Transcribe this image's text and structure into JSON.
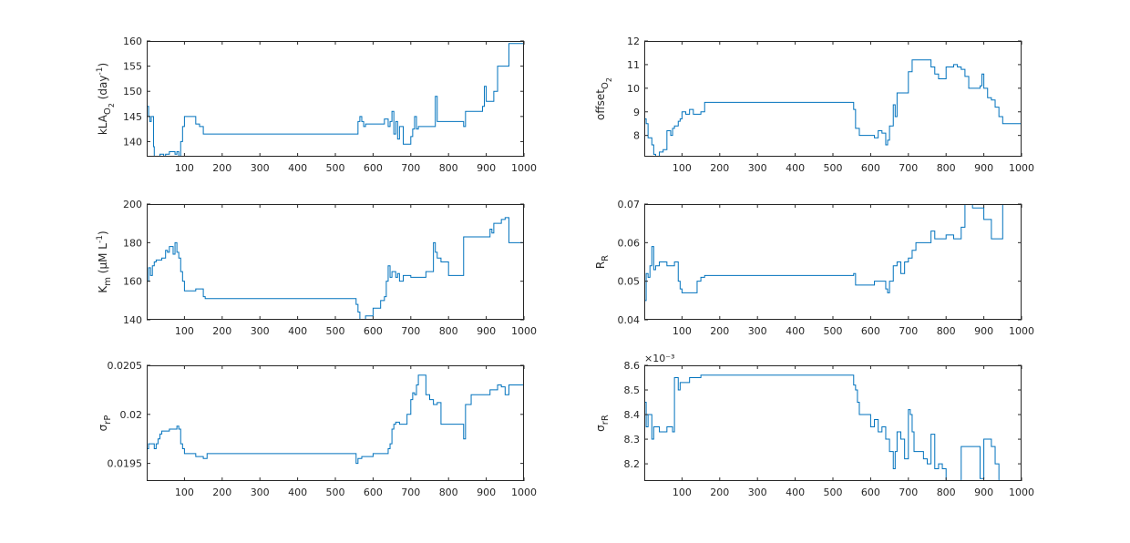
{
  "colors": {
    "line": "#0072BD",
    "axis": "#262626",
    "background": "#ffffff"
  },
  "chart_data": [
    {
      "type": "line",
      "ylabel": "kLA O2 (day-1)",
      "ylabel_parts": [
        {
          "t": "kLA",
          "s": ""
        },
        {
          "t": "O",
          "s": "sub"
        },
        {
          "t": "2",
          "s": "subsub"
        },
        {
          "t": " (day",
          "s": ""
        },
        {
          "t": "-1",
          "s": "sup"
        },
        {
          "t": ")",
          "s": ""
        }
      ],
      "xlim": [
        0,
        1000
      ],
      "ylim": [
        137,
        160
      ],
      "xticks": [
        100,
        200,
        300,
        400,
        500,
        600,
        700,
        800,
        900,
        1000
      ],
      "yticks": [
        140,
        145,
        150,
        155,
        160
      ],
      "x": [
        0,
        5,
        8,
        12,
        18,
        20,
        22,
        25,
        30,
        35,
        40,
        45,
        50,
        55,
        60,
        70,
        75,
        80,
        85,
        90,
        95,
        100,
        110,
        120,
        130,
        140,
        150,
        155,
        555,
        560,
        565,
        570,
        575,
        580,
        600,
        630,
        640,
        645,
        650,
        655,
        660,
        665,
        670,
        680,
        690,
        700,
        705,
        710,
        715,
        720,
        730,
        760,
        765,
        770,
        780,
        800,
        820,
        840,
        845,
        850,
        880,
        890,
        895,
        900,
        910,
        920,
        930,
        950,
        960,
        1000
      ],
      "y": [
        147,
        145,
        144,
        145,
        139,
        137,
        136,
        134,
        136,
        137.5,
        137.5,
        137,
        137.5,
        137.5,
        138,
        138,
        137.5,
        138,
        137,
        140,
        143,
        145,
        145,
        145,
        143.5,
        143,
        141.5,
        141.5,
        141.5,
        144,
        145,
        144,
        143,
        143.5,
        143.5,
        144.5,
        143,
        144,
        146,
        141.5,
        144,
        140.5,
        143,
        139.5,
        139.5,
        141,
        142.5,
        145,
        142.5,
        143,
        143,
        143,
        149,
        144,
        144,
        144,
        144,
        143,
        146,
        146,
        146,
        147,
        151,
        148,
        148,
        150,
        155,
        155,
        159.5,
        159.5
      ]
    },
    {
      "type": "line",
      "ylabel": "offset O2",
      "ylabel_parts": [
        {
          "t": "offset",
          "s": ""
        },
        {
          "t": "O",
          "s": "sub"
        },
        {
          "t": "2",
          "s": "subsub"
        }
      ],
      "xlim": [
        0,
        1000
      ],
      "ylim": [
        7.1,
        12
      ],
      "xticks": [
        100,
        200,
        300,
        400,
        500,
        600,
        700,
        800,
        900,
        1000
      ],
      "yticks": [
        8,
        9,
        10,
        11,
        12
      ],
      "x": [
        0,
        5,
        10,
        20,
        25,
        30,
        40,
        50,
        60,
        70,
        75,
        80,
        90,
        95,
        100,
        110,
        120,
        130,
        150,
        160,
        550,
        555,
        560,
        570,
        600,
        610,
        620,
        630,
        640,
        645,
        650,
        660,
        665,
        670,
        680,
        700,
        710,
        720,
        740,
        760,
        770,
        780,
        800,
        820,
        830,
        840,
        850,
        860,
        880,
        890,
        895,
        900,
        910,
        920,
        930,
        940,
        950,
        1000
      ],
      "y": [
        8.7,
        8.5,
        7.9,
        7.6,
        7.2,
        7.0,
        7.3,
        7.4,
        8.2,
        8.0,
        8.3,
        8.4,
        8.6,
        8.7,
        9.0,
        8.9,
        9.1,
        8.9,
        9.0,
        9.4,
        9.4,
        9.1,
        8.3,
        8.0,
        8.0,
        7.9,
        8.2,
        8.1,
        7.6,
        7.8,
        8.4,
        9.3,
        8.8,
        9.8,
        9.8,
        10.7,
        11.2,
        11.2,
        11.2,
        10.9,
        10.6,
        10.4,
        10.9,
        11.0,
        10.9,
        10.8,
        10.5,
        10.0,
        10.0,
        10.1,
        10.6,
        10.0,
        9.6,
        9.5,
        9.2,
        8.8,
        8.5,
        8.5
      ]
    },
    {
      "type": "line",
      "ylabel": "Km (μM L-1)",
      "ylabel_parts": [
        {
          "t": "K",
          "s": ""
        },
        {
          "t": "m",
          "s": "sub"
        },
        {
          "t": " (μM L",
          "s": ""
        },
        {
          "t": "-1",
          "s": "sup"
        },
        {
          "t": ")",
          "s": ""
        }
      ],
      "xlim": [
        0,
        1000
      ],
      "ylim": [
        140,
        200
      ],
      "xticks": [
        100,
        200,
        300,
        400,
        500,
        600,
        700,
        800,
        900,
        1000
      ],
      "yticks": [
        140,
        160,
        180,
        200
      ],
      "x": [
        0,
        5,
        10,
        15,
        20,
        25,
        30,
        40,
        50,
        55,
        60,
        70,
        75,
        80,
        85,
        90,
        95,
        100,
        110,
        130,
        150,
        155,
        550,
        555,
        560,
        565,
        570,
        580,
        600,
        620,
        630,
        635,
        640,
        645,
        650,
        660,
        665,
        670,
        680,
        700,
        720,
        740,
        760,
        765,
        770,
        780,
        800,
        820,
        840,
        850,
        880,
        900,
        910,
        915,
        920,
        930,
        940,
        950,
        960,
        1000
      ],
      "y": [
        160,
        167,
        163,
        168,
        170,
        171,
        171,
        172,
        176,
        175,
        178,
        174,
        180,
        175,
        172,
        165,
        160,
        155,
        155,
        156,
        152,
        151,
        151,
        148,
        144,
        140,
        138,
        142,
        146,
        150,
        152,
        160,
        168,
        162,
        165,
        162,
        164,
        160,
        163,
        162,
        162,
        165,
        180,
        175,
        172,
        170,
        163,
        163,
        183,
        183,
        183,
        183,
        187,
        185,
        190,
        190,
        192,
        193,
        180,
        180
      ]
    },
    {
      "type": "line",
      "ylabel": "RR",
      "ylabel_parts": [
        {
          "t": "R",
          "s": ""
        },
        {
          "t": "R",
          "s": "sub"
        }
      ],
      "xlim": [
        0,
        1000
      ],
      "ylim": [
        0.04,
        0.07
      ],
      "xticks": [
        100,
        200,
        300,
        400,
        500,
        600,
        700,
        800,
        900,
        1000
      ],
      "yticks": [
        0.04,
        0.05,
        0.06,
        0.07
      ],
      "x": [
        0,
        5,
        10,
        15,
        20,
        25,
        30,
        40,
        60,
        80,
        90,
        95,
        100,
        130,
        140,
        150,
        160,
        550,
        555,
        560,
        570,
        600,
        610,
        620,
        640,
        645,
        650,
        660,
        670,
        680,
        690,
        700,
        710,
        720,
        740,
        760,
        770,
        780,
        800,
        820,
        840,
        850,
        870,
        880,
        900,
        920,
        940,
        950,
        1000
      ],
      "y": [
        0.045,
        0.052,
        0.051,
        0.054,
        0.059,
        0.053,
        0.054,
        0.055,
        0.054,
        0.055,
        0.05,
        0.048,
        0.047,
        0.047,
        0.05,
        0.051,
        0.0515,
        0.0515,
        0.052,
        0.049,
        0.049,
        0.049,
        0.05,
        0.05,
        0.048,
        0.047,
        0.05,
        0.054,
        0.055,
        0.052,
        0.055,
        0.056,
        0.058,
        0.06,
        0.06,
        0.063,
        0.061,
        0.061,
        0.062,
        0.061,
        0.064,
        0.07,
        0.069,
        0.069,
        0.066,
        0.061,
        0.061,
        0.07,
        0.07
      ]
    },
    {
      "type": "line",
      "ylabel": "σrP",
      "ylabel_parts": [
        {
          "t": "σ",
          "s": ""
        },
        {
          "t": "rP",
          "s": "sub"
        }
      ],
      "xlim": [
        0,
        1000
      ],
      "ylim": [
        0.01932,
        0.0205
      ],
      "xticks": [
        100,
        200,
        300,
        400,
        500,
        600,
        700,
        800,
        900,
        1000
      ],
      "yticks": [
        0.0195,
        0.02,
        0.0205
      ],
      "ytick_labels": [
        "0.0195",
        "0.02",
        "0.0205"
      ],
      "x": [
        0,
        5,
        15,
        20,
        25,
        30,
        35,
        40,
        60,
        70,
        80,
        85,
        90,
        95,
        100,
        130,
        150,
        160,
        550,
        555,
        560,
        570,
        600,
        630,
        640,
        645,
        650,
        655,
        660,
        670,
        680,
        690,
        700,
        705,
        710,
        715,
        720,
        740,
        750,
        760,
        770,
        780,
        800,
        820,
        840,
        845,
        850,
        860,
        880,
        900,
        910,
        920,
        930,
        940,
        950,
        960,
        1000
      ],
      "y": [
        0.01965,
        0.0197,
        0.0197,
        0.01965,
        0.0197,
        0.01975,
        0.0198,
        0.01983,
        0.01985,
        0.01985,
        0.01988,
        0.01985,
        0.0197,
        0.01965,
        0.0196,
        0.01957,
        0.01955,
        0.0196,
        0.0196,
        0.0195,
        0.01955,
        0.01957,
        0.0196,
        0.0196,
        0.01965,
        0.0197,
        0.01985,
        0.0199,
        0.01992,
        0.0199,
        0.0199,
        0.02,
        0.02015,
        0.02022,
        0.0202,
        0.0203,
        0.0204,
        0.0202,
        0.02015,
        0.0201,
        0.02012,
        0.0199,
        0.0199,
        0.0199,
        0.01975,
        0.0201,
        0.0201,
        0.0202,
        0.0202,
        0.0202,
        0.02025,
        0.02025,
        0.0203,
        0.02028,
        0.0202,
        0.0203,
        0.0203
      ]
    },
    {
      "type": "line",
      "ylabel": "σrR",
      "ylabel_parts": [
        {
          "t": "σ",
          "s": ""
        },
        {
          "t": "rR",
          "s": "sub"
        }
      ],
      "exponent": "×10⁻³",
      "xlim": [
        0,
        1000
      ],
      "ylim": [
        8.13,
        8.6
      ],
      "xticks": [
        100,
        200,
        300,
        400,
        500,
        600,
        700,
        800,
        900,
        1000
      ],
      "yticks": [
        8.2,
        8.3,
        8.4,
        8.5,
        8.6
      ],
      "x": [
        0,
        5,
        10,
        20,
        25,
        30,
        40,
        55,
        60,
        75,
        80,
        90,
        95,
        100,
        120,
        150,
        160,
        550,
        555,
        560,
        565,
        570,
        600,
        610,
        620,
        630,
        640,
        650,
        660,
        665,
        670,
        680,
        690,
        700,
        705,
        710,
        715,
        720,
        740,
        750,
        760,
        770,
        780,
        790,
        800,
        810,
        820,
        830,
        840,
        850,
        880,
        890,
        900,
        910,
        920,
        930,
        940,
        950,
        1000
      ],
      "y": [
        8.45,
        8.35,
        8.4,
        8.3,
        8.35,
        8.35,
        8.33,
        8.33,
        8.35,
        8.33,
        8.55,
        8.5,
        8.53,
        8.53,
        8.55,
        8.56,
        8.56,
        8.56,
        8.52,
        8.5,
        8.45,
        8.4,
        8.35,
        8.38,
        8.33,
        8.35,
        8.3,
        8.25,
        8.18,
        8.25,
        8.33,
        8.3,
        8.22,
        8.42,
        8.4,
        8.33,
        8.25,
        8.25,
        8.22,
        8.2,
        8.32,
        8.18,
        8.2,
        8.18,
        8.13,
        8.13,
        8.13,
        8.13,
        8.27,
        8.27,
        8.27,
        8.14,
        8.3,
        8.3,
        8.27,
        8.2,
        8.1,
        8.1,
        8.1
      ]
    }
  ]
}
